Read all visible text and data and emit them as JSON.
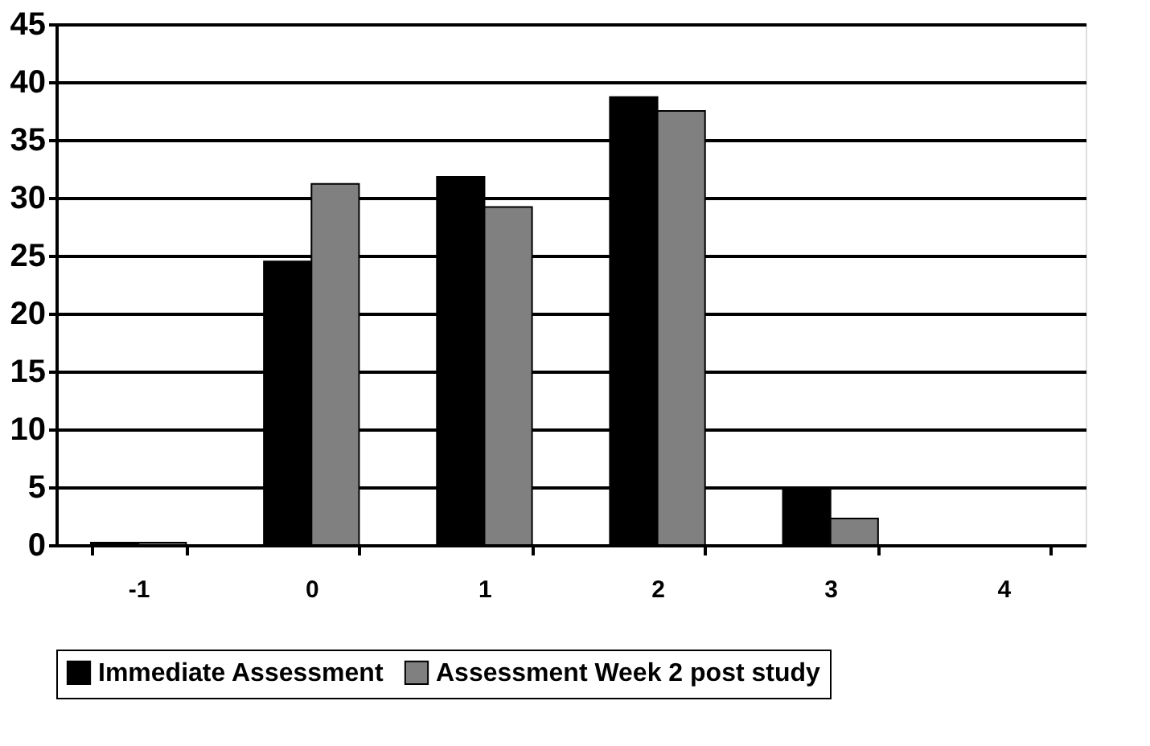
{
  "chart_data": {
    "type": "bar",
    "categories": [
      "-1",
      "0",
      "1",
      "2",
      "3",
      "4"
    ],
    "series": [
      {
        "name": "Immediate Assessment",
        "color": "#000000",
        "values": [
          0.2,
          24.5,
          31.8,
          38.7,
          5.0,
          null
        ]
      },
      {
        "name": "Assessment Week 2 post study",
        "color": "#808080",
        "values": [
          0.2,
          31.2,
          29.2,
          37.5,
          2.3,
          null
        ]
      }
    ],
    "ylim": [
      0,
      45
    ],
    "yticks": [
      0,
      5,
      10,
      15,
      20,
      25,
      30,
      35,
      40,
      45
    ],
    "grid": "y",
    "legend": "bottom"
  }
}
